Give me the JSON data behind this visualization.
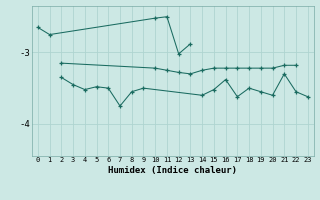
{
  "xlabel": "Humidex (Indice chaleur)",
  "bg_color": "#cce8e4",
  "grid_color": "#afd4d0",
  "line_color": "#1a6b60",
  "line1_x": [
    0,
    1,
    10,
    11,
    12,
    13
  ],
  "line1_y": [
    -2.65,
    -2.75,
    -2.52,
    -2.5,
    -3.02,
    -2.88
  ],
  "line2_x": [
    2,
    10,
    11,
    12,
    13,
    14,
    15,
    16,
    17,
    18,
    19,
    20,
    21,
    22
  ],
  "line2_y": [
    -3.15,
    -3.22,
    -3.25,
    -3.28,
    -3.3,
    -3.25,
    -3.22,
    -3.22,
    -3.22,
    -3.22,
    -3.22,
    -3.22,
    -3.18,
    -3.18
  ],
  "line3_x": [
    2,
    3,
    4,
    5,
    6,
    7,
    8,
    9,
    14,
    15,
    16,
    17,
    18,
    19,
    20,
    21,
    22,
    23
  ],
  "line3_y": [
    -3.35,
    -3.45,
    -3.52,
    -3.48,
    -3.5,
    -3.75,
    -3.55,
    -3.5,
    -3.6,
    -3.52,
    -3.38,
    -3.62,
    -3.5,
    -3.55,
    -3.6,
    -3.3,
    -3.55,
    -3.62
  ],
  "yticks": [
    -4,
    -3
  ],
  "ylim": [
    -4.45,
    -2.35
  ],
  "xlim": [
    -0.5,
    23.5
  ],
  "xtick_fontsize": 5.0,
  "ytick_fontsize": 6.5,
  "xlabel_fontsize": 6.5
}
